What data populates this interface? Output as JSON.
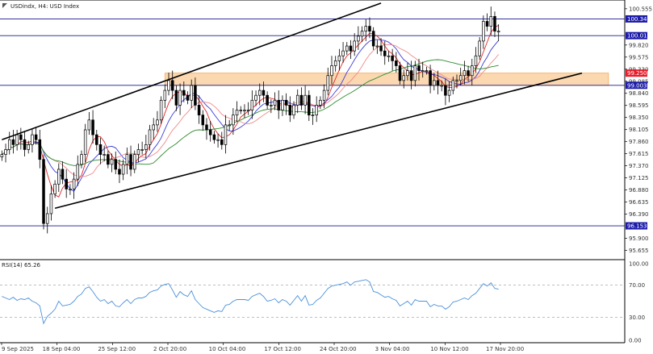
{
  "title": "USDindx, H4:  USD Index",
  "colors": {
    "bull_candle": "#000000",
    "bear_candle": "#000000",
    "ma_fast": "#e0282a",
    "ma_mid": "#3c3cd8",
    "ma_slow_red": "#f08a8a",
    "ma_slow": "#2e8b2e",
    "channel": "#000000",
    "zone_fill": "#fbd8b0",
    "zone_edge": "#f3a95a",
    "hline": "#1a1a8c",
    "badge_blue": "#1c1ca8",
    "badge_red": "#e81c2a",
    "rsi_line": "#4a90d9",
    "rsi_levels": "#999999"
  },
  "chart_data": [
    {
      "type": "candlestick",
      "symbol": "USDindx",
      "timeframe": "H4",
      "description": "USD Index",
      "ylim": [
        95.5,
        100.7
      ],
      "y_ticks": [
        100.555,
        99.82,
        99.575,
        99.33,
        99.085,
        98.84,
        98.595,
        98.35,
        98.105,
        97.86,
        97.615,
        97.37,
        97.125,
        96.88,
        96.635,
        96.39,
        95.9,
        95.655
      ],
      "x_labels": [
        "9 Sep 2025",
        "18 Sep 04:00",
        "25 Sep 12:00",
        "2 Oct 20:00",
        "10 Oct 04:00",
        "17 Oct 12:00",
        "24 Oct 20:00",
        "3 Nov 04:00",
        "10 Nov 12:00",
        "17 Nov 20:00"
      ],
      "price_labels": [
        {
          "value": 100.349,
          "label": "100.349",
          "style": "blue"
        },
        {
          "value": 100.01,
          "label": "100.010",
          "style": "blue"
        },
        {
          "value": 99.25,
          "label": "99.250",
          "style": "red"
        },
        {
          "value": 99.003,
          "label": "99.003",
          "style": "blue"
        },
        {
          "value": 96.153,
          "label": "96.153",
          "style": "blue"
        }
      ],
      "horizontal_lines": [
        100.349,
        100.01,
        99.003,
        96.153
      ],
      "zone": {
        "from_index": 43,
        "to_index": 160,
        "low": 99.003,
        "high": 99.25
      },
      "channel": {
        "upper": [
          [
            0,
            97.9
          ],
          [
            100,
            100.67
          ]
        ],
        "lower": [
          [
            14,
            96.51
          ],
          [
            153,
            99.25
          ]
        ]
      },
      "ohlc_closes": [
        97.6,
        97.7,
        97.9,
        97.8,
        98.0,
        97.9,
        97.7,
        97.8,
        98.0,
        97.9,
        97.5,
        96.2,
        96.4,
        96.8,
        97.0,
        97.3,
        97.1,
        96.9,
        96.9,
        97.1,
        97.4,
        97.6,
        98.1,
        98.3,
        98.0,
        97.8,
        97.6,
        97.6,
        97.4,
        97.5,
        97.3,
        97.2,
        97.4,
        97.6,
        97.3,
        97.6,
        97.7,
        97.7,
        97.8,
        98.1,
        98.2,
        98.3,
        98.7,
        98.9,
        99.1,
        98.9,
        98.6,
        98.9,
        98.8,
        98.7,
        99.0,
        98.6,
        98.4,
        98.2,
        98.1,
        98.0,
        97.9,
        97.9,
        97.8,
        98.2,
        98.2,
        98.4,
        98.5,
        98.5,
        98.5,
        98.5,
        98.7,
        98.8,
        98.9,
        98.8,
        98.6,
        98.6,
        98.7,
        98.5,
        98.7,
        98.6,
        98.4,
        98.6,
        98.8,
        98.6,
        98.8,
        98.4,
        98.4,
        98.6,
        98.7,
        98.9,
        99.2,
        99.4,
        99.5,
        99.6,
        99.7,
        99.8,
        99.7,
        99.9,
        100.0,
        100.1,
        100.2,
        100.1,
        99.8,
        99.8,
        99.7,
        99.6,
        99.6,
        99.5,
        99.4,
        99.1,
        99.2,
        99.3,
        99.1,
        99.4,
        99.3,
        99.3,
        99.3,
        99.0,
        99.1,
        99.0,
        99.0,
        98.8,
        98.9,
        99.1,
        99.1,
        99.2,
        99.3,
        99.2,
        99.4,
        99.6,
        99.9,
        100.3,
        100.2,
        100.4,
        100.1,
        100.1
      ],
      "indicators": [
        "MA fast (red)",
        "MA mid (blue)",
        "MA slow (light red)",
        "MA slowest (green)"
      ]
    },
    {
      "type": "line",
      "label": "RSI(14) 65.26",
      "ylim": [
        0,
        100
      ],
      "y_ticks": [
        100.0,
        70.0,
        30.0,
        0.0
      ],
      "levels": [
        70,
        30
      ],
      "last_value": 65.26,
      "values": [
        56,
        54,
        52,
        55,
        51,
        53,
        52,
        54,
        50,
        48,
        44,
        22,
        31,
        35,
        40,
        50,
        44,
        45,
        46,
        50,
        56,
        59,
        66,
        68,
        62,
        55,
        50,
        52,
        47,
        50,
        44,
        43,
        48,
        52,
        47,
        52,
        54,
        54,
        56,
        61,
        63,
        64,
        69,
        71,
        72,
        64,
        55,
        62,
        58,
        56,
        63,
        52,
        47,
        42,
        40,
        38,
        36,
        38,
        37,
        45,
        46,
        50,
        52,
        52,
        52,
        51,
        56,
        58,
        60,
        56,
        50,
        51,
        53,
        48,
        52,
        50,
        45,
        51,
        57,
        50,
        57,
        45,
        46,
        51,
        54,
        60,
        66,
        69,
        70,
        71,
        72,
        74,
        70,
        74,
        75,
        76,
        77,
        74,
        62,
        61,
        58,
        55,
        56,
        53,
        51,
        44,
        47,
        50,
        45,
        52,
        50,
        50,
        50,
        43,
        46,
        44,
        44,
        40,
        43,
        49,
        50,
        52,
        54,
        52,
        57,
        60,
        66,
        72,
        69,
        73,
        66,
        65
      ]
    }
  ]
}
